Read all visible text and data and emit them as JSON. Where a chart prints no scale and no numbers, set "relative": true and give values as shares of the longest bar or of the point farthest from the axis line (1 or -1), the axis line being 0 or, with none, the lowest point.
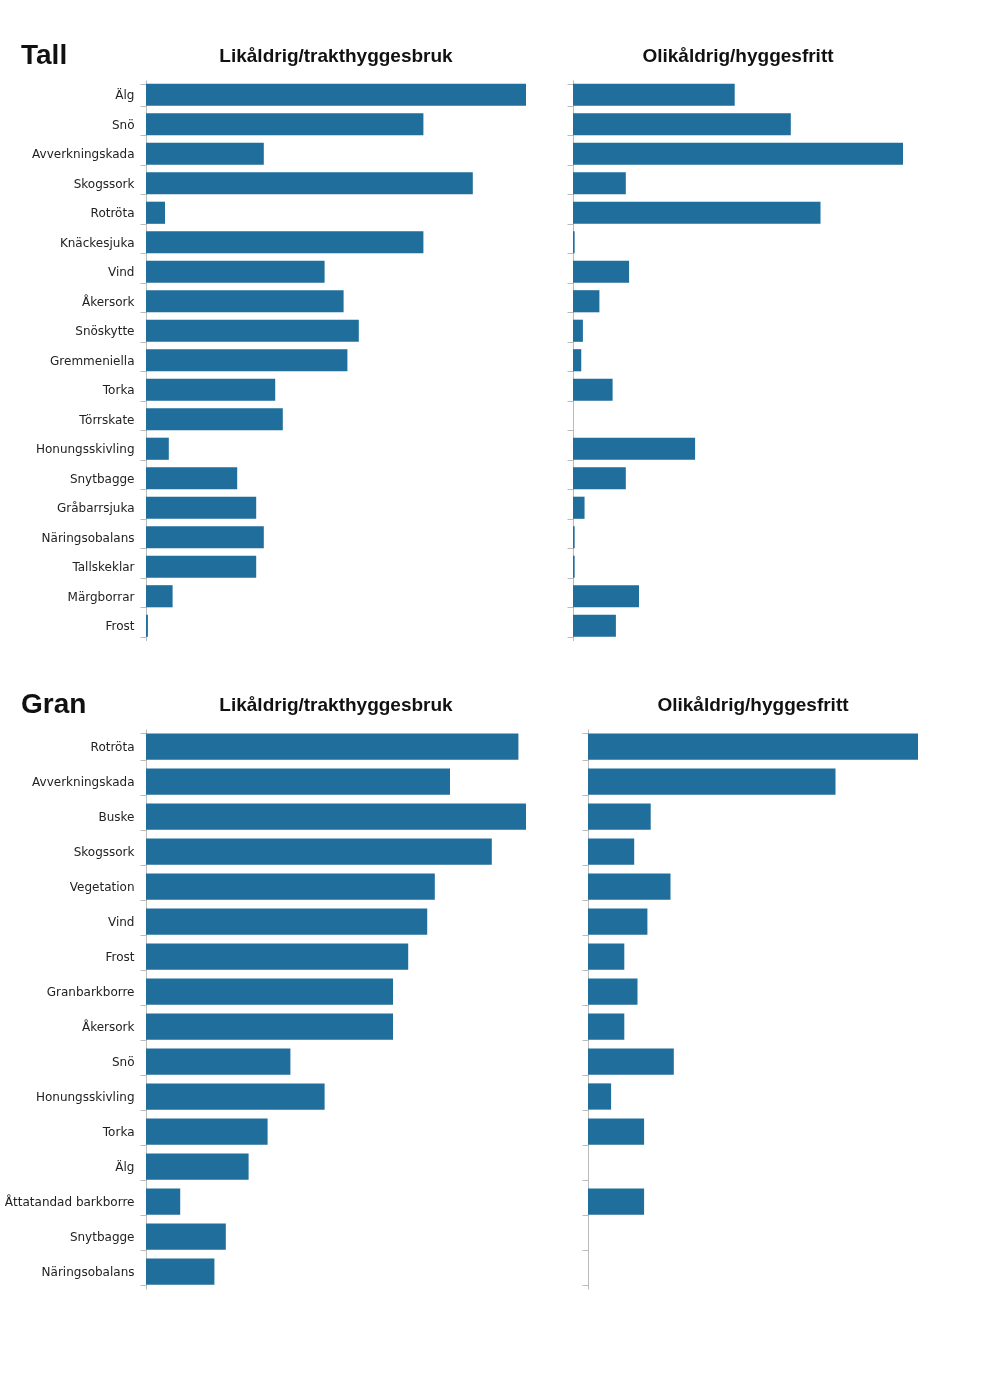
{
  "chart_data": [
    {
      "type": "bar",
      "orientation": "horizontal",
      "relative": true,
      "title": "Likåldrig/trakthyggesbruk",
      "annotations": [
        "Tall"
      ],
      "color": "#1f6e9c",
      "categories": [
        "Älg",
        "Snö",
        "Avverkningskada",
        "Skogssork",
        "Rotröta",
        "Knäckesjuka",
        "Vind",
        "Åkersork",
        "Snöskytte",
        "Gremmeniella",
        "Torka",
        "Törrskate",
        "Honungsskivling",
        "Snytbagge",
        "Gråbarrsjuka",
        "Näringsobalans",
        "Tallskeklar",
        "Märgborrar",
        "Frost"
      ],
      "values": [
        1,
        0.73,
        0.31,
        0.86,
        0.05,
        0.73,
        0.47,
        0.52,
        0.56,
        0.53,
        0.34,
        0.36,
        0.06,
        0.24,
        0.29,
        0.31,
        0.29,
        0.07,
        0.005
      ]
    },
    {
      "type": "bar",
      "orientation": "horizontal",
      "relative": true,
      "title": "Olikåldrig/hyggesfritt",
      "tick_labels": false,
      "color": "#1f6e9c",
      "categories": [
        null,
        null,
        null,
        null,
        null,
        null,
        null,
        null,
        null,
        null,
        null,
        null,
        null,
        null,
        null,
        null,
        null,
        null,
        null
      ],
      "values": [
        0.49,
        0.66,
        1,
        0.16,
        0.75,
        0.005,
        0.17,
        0.08,
        0.03,
        0.025,
        0.12,
        0,
        0.37,
        0.16,
        0.035,
        0.005,
        0.005,
        0.2,
        0.13
      ]
    },
    {
      "type": "bar",
      "orientation": "horizontal",
      "relative": true,
      "title": "Likåldrig/trakthyggesbruk",
      "annotations": [
        "Gran"
      ],
      "color": "#1f6e9c",
      "categories": [
        "Rotröta",
        "Avverkningskada",
        "Buske",
        "Skogssork",
        "Vegetation",
        "Vind",
        "Frost",
        "Granbarkborre",
        "Åkersork",
        "Snö",
        "Honungsskivling",
        "Torka",
        "Älg",
        "Åttatandad barkborre",
        "Snytbagge",
        "Näringsobalans"
      ],
      "values": [
        0.98,
        0.8,
        1,
        0.91,
        0.76,
        0.74,
        0.69,
        0.65,
        0.65,
        0.38,
        0.47,
        0.32,
        0.27,
        0.09,
        0.21,
        0.18
      ]
    },
    {
      "type": "bar",
      "orientation": "horizontal",
      "relative": true,
      "title": "Olikåldrig/hyggesfritt",
      "tick_labels": false,
      "color": "#1f6e9c",
      "categories": [
        null,
        null,
        null,
        null,
        null,
        null,
        null,
        null,
        null,
        null,
        null,
        null,
        null,
        null,
        null,
        null
      ],
      "values": [
        1,
        0.75,
        0.19,
        0.14,
        0.25,
        0.18,
        0.11,
        0.15,
        0.11,
        0.26,
        0.07,
        0.17,
        0,
        0.17,
        0,
        0
      ]
    }
  ]
}
